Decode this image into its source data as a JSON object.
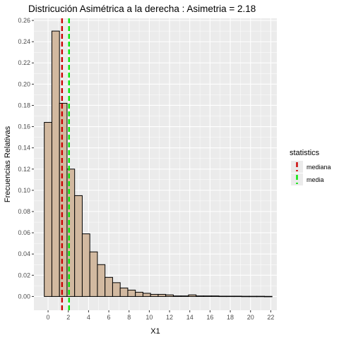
{
  "chart_data": {
    "type": "bar",
    "title": "Districución Asimétrica a la derecha : Asimetria = 2.18",
    "xlabel": "X1",
    "ylabel": "Frecuencias Relativas",
    "xlim": [
      -1.4,
      22.6
    ],
    "ylim": [
      -0.013,
      0.262
    ],
    "x_ticks": [
      0,
      2,
      4,
      6,
      8,
      10,
      12,
      14,
      16,
      18,
      20,
      22
    ],
    "y_ticks": [
      0.0,
      0.02,
      0.04,
      0.06,
      0.08,
      0.1,
      0.12,
      0.14,
      0.16,
      0.18,
      0.2,
      0.22,
      0.24,
      0.26
    ],
    "y_tick_labels": [
      "0.00",
      "0.02",
      "0.04",
      "0.06",
      "0.08",
      "0.10",
      "0.12",
      "0.14",
      "0.16",
      "0.18",
      "0.20",
      "0.22",
      "0.24",
      "0.26"
    ],
    "bin_width": 0.75,
    "bin_start": -0.375,
    "values": [
      0.164,
      0.25,
      0.182,
      0.12,
      0.095,
      0.059,
      0.042,
      0.03,
      0.018,
      0.013,
      0.008,
      0.006,
      0.004,
      0.003,
      0.002,
      0.002,
      0.0015,
      0.0005,
      0.0005,
      0.0015,
      0.0005,
      0.0005,
      0.0005,
      0.0003,
      0.0003,
      0.0003,
      0.0002,
      0.0002,
      0.0002,
      0.0001
    ],
    "vlines": [
      {
        "name": "mediana",
        "x": 1.38,
        "color": "#cc0000",
        "dash": "dashed"
      },
      {
        "name": "media",
        "x": 2.07,
        "color": "#00e600",
        "dash": "dashed"
      }
    ],
    "legend": {
      "title": "statistics",
      "placement": "right",
      "entries": [
        "mediana",
        "media"
      ]
    },
    "grid": true,
    "colors": {
      "bar_fill": "#d2b9a0",
      "bar_stroke": "#000000",
      "panel_bg": "#ebebeb",
      "grid": "#ffffff"
    }
  }
}
